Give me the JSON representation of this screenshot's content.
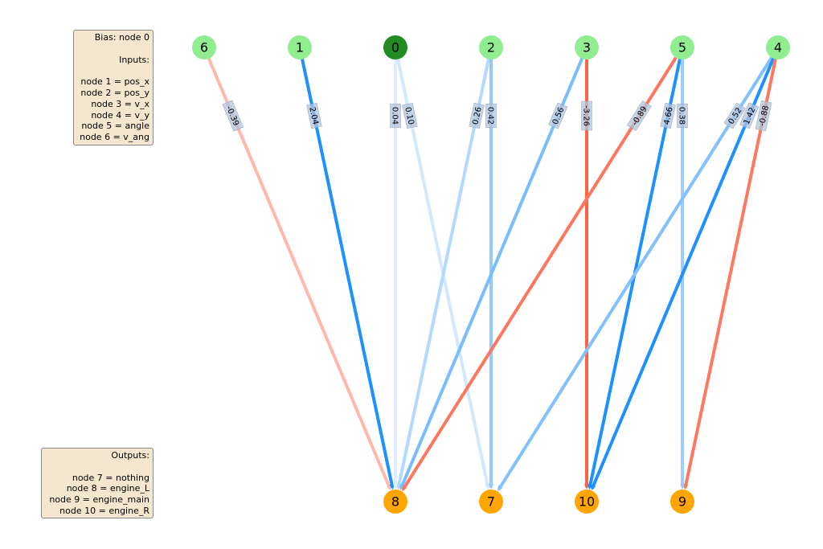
{
  "legend": {
    "bias_lines": [
      "Bias: node 0",
      "",
      "Inputs:",
      "",
      "node 1 = pos_x",
      "node 2 = pos_y",
      "node 3 = v_x",
      "node 4 = v_y",
      "node 5 = angle",
      "node 6 = v_ang"
    ],
    "output_lines": [
      "Outputs:",
      "",
      "node 7 = nothing",
      "node 8 = engine_L",
      "node 9 = engine_main",
      "node 10 = engine_R"
    ]
  },
  "colors": {
    "input_node": "#90ee90",
    "bias_node": "#228b22",
    "output_node": "#ffa500",
    "positive_weight": "#1e90ff",
    "negative_weight": "#ff6347"
  },
  "input_order": [
    "6",
    "1",
    "0",
    "2",
    "3",
    "5",
    "4"
  ],
  "output_order": [
    "8",
    "7",
    "10",
    "9"
  ],
  "nodes": [
    {
      "id": "0",
      "label": "0",
      "type": "bias"
    },
    {
      "id": "1",
      "label": "1",
      "type": "input"
    },
    {
      "id": "2",
      "label": "2",
      "type": "input"
    },
    {
      "id": "3",
      "label": "3",
      "type": "input"
    },
    {
      "id": "4",
      "label": "4",
      "type": "input"
    },
    {
      "id": "5",
      "label": "5",
      "type": "input"
    },
    {
      "id": "6",
      "label": "6",
      "type": "input"
    },
    {
      "id": "7",
      "label": "7",
      "type": "output"
    },
    {
      "id": "8",
      "label": "8",
      "type": "output"
    },
    {
      "id": "9",
      "label": "9",
      "type": "output"
    },
    {
      "id": "10",
      "label": "10",
      "type": "output"
    }
  ],
  "edges": [
    {
      "from": "6",
      "to": "8",
      "weight": -0.39,
      "label": "-0.39"
    },
    {
      "from": "1",
      "to": "8",
      "weight": 2.04,
      "label": "2.04"
    },
    {
      "from": "0",
      "to": "8",
      "weight": 0.04,
      "label": "0.04"
    },
    {
      "from": "0",
      "to": "7",
      "weight": 0.1,
      "label": "0.10"
    },
    {
      "from": "2",
      "to": "8",
      "weight": 0.26,
      "label": "0.26"
    },
    {
      "from": "2",
      "to": "7",
      "weight": 0.42,
      "label": "0.42"
    },
    {
      "from": "3",
      "to": "8",
      "weight": 0.56,
      "label": "0.56"
    },
    {
      "from": "3",
      "to": "10",
      "weight": -3.26,
      "label": "-3.26"
    },
    {
      "from": "5",
      "to": "8",
      "weight": -0.89,
      "label": "-0.89"
    },
    {
      "from": "5",
      "to": "10",
      "weight": 4.66,
      "label": "4.66"
    },
    {
      "from": "5",
      "to": "9",
      "weight": 0.38,
      "label": "0.38"
    },
    {
      "from": "4",
      "to": "7",
      "weight": 0.52,
      "label": "0.52"
    },
    {
      "from": "4",
      "to": "10",
      "weight": 1.42,
      "label": "1.42"
    },
    {
      "from": "4",
      "to": "9",
      "weight": -0.88,
      "label": "-0.88"
    }
  ]
}
